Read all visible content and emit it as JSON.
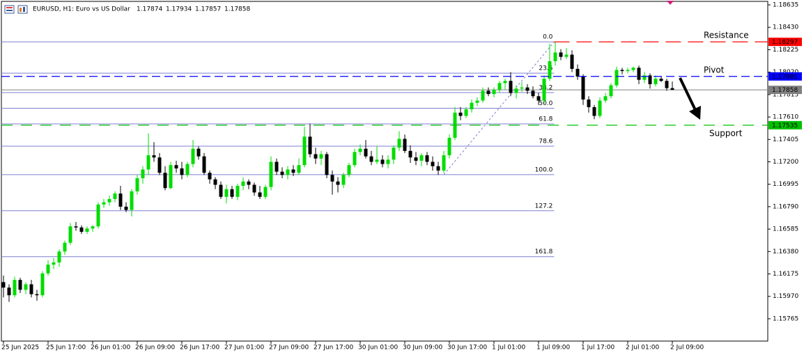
{
  "chart_data": {
    "type": "candlestick",
    "title": "EURUSD, H1: Euro vs US Dollar",
    "categories": [
      "25 Jun 2025",
      null,
      null,
      null,
      null,
      null,
      null,
      null,
      "25 Jun 17:00",
      null,
      null,
      null,
      null,
      null,
      null,
      null,
      "26 Jun 01:00",
      null,
      null,
      null,
      null,
      null,
      null,
      null,
      "26 Jun 09:00",
      null,
      null,
      null,
      null,
      null,
      null,
      null,
      "26 Jun 17:00",
      null,
      null,
      null,
      null,
      null,
      null,
      null,
      "27 Jun 01:00",
      null,
      null,
      null,
      null,
      null,
      null,
      null,
      "27 Jun 09:00",
      null,
      null,
      null,
      null,
      null,
      null,
      null,
      "27 Jun 17:00",
      null,
      null,
      null,
      null,
      null,
      null,
      null,
      "30 Jun 01:00",
      null,
      null,
      null,
      null,
      null,
      null,
      null,
      "30 Jun 09:00",
      null,
      null,
      null,
      null,
      null,
      null,
      null,
      "30 Jun 17:00",
      null,
      null,
      null,
      null,
      null,
      null,
      null,
      "1 Jul 01:00",
      null,
      null,
      null,
      null,
      null,
      null,
      null,
      "1 Jul 09:00",
      null,
      null,
      null,
      null,
      null,
      null,
      null,
      "1 Jul 17:00",
      null,
      null,
      null,
      null,
      null,
      null,
      null,
      "2 Jul 01:00",
      null,
      null,
      null,
      null,
      null,
      null,
      null,
      "2 Jul 09:00"
    ],
    "open": [
      1.161,
      1.1605,
      1.1598,
      1.1612,
      1.1603,
      1.1608,
      1.1599,
      1.1598,
      1.1618,
      1.1626,
      1.1628,
      1.1638,
      1.1646,
      1.1661,
      1.166,
      1.1656,
      1.1659,
      1.1661,
      1.1681,
      1.1683,
      1.1686,
      1.1691,
      1.1679,
      1.1676,
      1.1693,
      1.1705,
      1.1713,
      1.1726,
      1.1724,
      1.171,
      1.1696,
      1.1717,
      1.1714,
      1.1708,
      1.1718,
      1.1732,
      1.1725,
      1.171,
      1.1704,
      1.1699,
      1.1688,
      1.1695,
      1.1688,
      1.1698,
      1.1702,
      1.1699,
      1.1692,
      1.1688,
      1.1697,
      1.172,
      1.1711,
      1.1708,
      1.1713,
      1.171,
      1.1717,
      1.1743,
      1.1727,
      1.1723,
      1.1727,
      1.1708,
      1.1702,
      1.1699,
      1.1708,
      1.1717,
      1.1729,
      1.1732,
      1.1725,
      1.172,
      1.1722,
      1.1718,
      1.1722,
      1.1733,
      1.1741,
      1.173,
      1.1724,
      1.1721,
      1.1726,
      1.172,
      1.1716,
      1.1712,
      1.1726,
      1.1742,
      1.1765,
      1.1762,
      1.1768,
      1.1774,
      1.1776,
      1.1785,
      1.1782,
      1.1786,
      1.1792,
      1.1794,
      1.1783,
      1.1787,
      1.1788,
      1.1785,
      1.178,
      1.1776,
      1.1796,
      1.1812,
      1.182,
      1.1816,
      1.1818,
      1.1805,
      1.1798,
      1.1777,
      1.177,
      1.1762,
      1.1776,
      1.178,
      1.179,
      1.1804,
      1.1803,
      1.1804,
      1.1806,
      1.1795,
      1.1799,
      1.1791,
      1.1796,
      1.1794,
      1.17874
    ],
    "high": [
      1.1616,
      1.1608,
      1.1615,
      1.1614,
      1.161,
      1.1612,
      1.1603,
      1.162,
      1.163,
      1.1632,
      1.164,
      1.1648,
      1.1664,
      1.1665,
      1.1662,
      1.1661,
      1.1662,
      1.1683,
      1.1686,
      1.1689,
      1.1693,
      1.1698,
      1.1683,
      1.1695,
      1.1708,
      1.1716,
      1.1746,
      1.1738,
      1.1728,
      1.1716,
      1.172,
      1.1721,
      1.172,
      1.172,
      1.174,
      1.1734,
      1.1728,
      1.1712,
      1.1706,
      1.1702,
      1.1699,
      1.1698,
      1.17,
      1.1706,
      1.1704,
      1.1701,
      1.1698,
      1.1699,
      1.1725,
      1.1723,
      1.1715,
      1.1716,
      1.1717,
      1.1723,
      1.1752,
      1.1755,
      1.1733,
      1.173,
      1.1729,
      1.1712,
      1.1706,
      1.171,
      1.1719,
      1.1732,
      1.1736,
      1.174,
      1.173,
      1.1734,
      1.1726,
      1.1726,
      1.1735,
      1.1748,
      1.1745,
      1.1735,
      1.1729,
      1.1728,
      1.1729,
      1.1725,
      1.172,
      1.173,
      1.1745,
      1.177,
      1.177,
      1.177,
      1.1777,
      1.1779,
      1.1788,
      1.1788,
      1.1788,
      1.1794,
      1.1796,
      1.1802,
      1.179,
      1.1793,
      1.1791,
      1.1789,
      1.1783,
      1.1799,
      1.1828,
      1.183,
      1.1823,
      1.1824,
      1.1822,
      1.1809,
      1.18,
      1.178,
      1.1772,
      1.1779,
      1.1783,
      1.1792,
      1.1807,
      1.1806,
      1.1806,
      1.1807,
      1.1808,
      1.1802,
      1.1801,
      1.1799,
      1.1798,
      1.1796,
      1.17934
    ],
    "low": [
      1.1596,
      1.1592,
      1.1596,
      1.16,
      1.1599,
      1.1596,
      1.1593,
      1.1596,
      1.1616,
      1.1622,
      1.1624,
      1.1635,
      1.1644,
      1.1657,
      1.1654,
      1.1654,
      1.1656,
      1.1659,
      1.1678,
      1.168,
      1.1683,
      1.1676,
      1.1674,
      1.167,
      1.169,
      1.17,
      1.1708,
      1.172,
      1.1708,
      1.1694,
      1.1695,
      1.171,
      1.1704,
      1.1706,
      1.1715,
      1.1722,
      1.1708,
      1.17,
      1.1695,
      1.1686,
      1.1682,
      1.1686,
      1.1685,
      1.1694,
      1.1695,
      1.1689,
      1.1686,
      1.1686,
      1.1694,
      1.1708,
      1.1705,
      1.1704,
      1.1707,
      1.1708,
      1.1715,
      1.1724,
      1.1718,
      1.1717,
      1.1705,
      1.169,
      1.1692,
      1.1696,
      1.1706,
      1.1715,
      1.1726,
      1.1723,
      1.1717,
      1.1718,
      1.1715,
      1.1714,
      1.1718,
      1.173,
      1.1728,
      1.1719,
      1.1717,
      1.1716,
      1.1717,
      1.1712,
      1.1708,
      1.171,
      1.1723,
      1.174,
      1.1758,
      1.176,
      1.1765,
      1.1771,
      1.1774,
      1.178,
      1.1779,
      1.1783,
      1.1786,
      1.178,
      1.1778,
      1.1784,
      1.1782,
      1.1778,
      1.1772,
      1.1773,
      1.1794,
      1.1808,
      1.1813,
      1.1814,
      1.1802,
      1.1795,
      1.1772,
      1.1765,
      1.1759,
      1.176,
      1.1774,
      1.1778,
      1.1788,
      1.18,
      1.1801,
      1.1802,
      1.1791,
      1.1792,
      1.1787,
      1.1789,
      1.1793,
      1.1785,
      1.17857
    ],
    "close": [
      1.1605,
      1.1598,
      1.1612,
      1.1603,
      1.1608,
      1.1599,
      1.1598,
      1.1618,
      1.1626,
      1.1628,
      1.1638,
      1.1646,
      1.1661,
      1.166,
      1.1656,
      1.1659,
      1.1661,
      1.1681,
      1.1683,
      1.1686,
      1.1691,
      1.1679,
      1.1676,
      1.1693,
      1.1705,
      1.1713,
      1.1726,
      1.1724,
      1.171,
      1.1696,
      1.1717,
      1.1714,
      1.1708,
      1.1718,
      1.1732,
      1.1725,
      1.171,
      1.1704,
      1.1699,
      1.1688,
      1.1695,
      1.1688,
      1.1698,
      1.1702,
      1.1699,
      1.1692,
      1.1688,
      1.1697,
      1.172,
      1.1711,
      1.1708,
      1.1713,
      1.171,
      1.1717,
      1.1743,
      1.1727,
      1.1723,
      1.1727,
      1.1708,
      1.1702,
      1.1699,
      1.1708,
      1.1717,
      1.1729,
      1.1732,
      1.1725,
      1.172,
      1.1722,
      1.1718,
      1.1722,
      1.1733,
      1.1741,
      1.173,
      1.1724,
      1.1721,
      1.1726,
      1.172,
      1.1716,
      1.1712,
      1.1726,
      1.1742,
      1.1765,
      1.1762,
      1.1768,
      1.1774,
      1.1776,
      1.1785,
      1.1782,
      1.1786,
      1.1792,
      1.1794,
      1.1783,
      1.1787,
      1.1788,
      1.1785,
      1.178,
      1.1776,
      1.1796,
      1.1812,
      1.182,
      1.1816,
      1.1818,
      1.1805,
      1.1798,
      1.1777,
      1.177,
      1.1762,
      1.1776,
      1.178,
      1.179,
      1.1804,
      1.1803,
      1.1804,
      1.1806,
      1.1795,
      1.1799,
      1.1791,
      1.1796,
      1.1794,
      1.17874,
      1.17858
    ],
    "up_color": "#00dd00",
    "down_color": "#000000",
    "current_color": "#808080",
    "ylim": [
      1.15561,
      1.18667
    ],
    "yticks": [
      1.18635,
      {
        "value": 1.1843,
        "label": "1.18430"
      },
      1.18225,
      {
        "value": 1.1802,
        "label": "1.18020"
      },
      1.17815,
      {
        "value": 1.1761,
        "label": "1.17610"
      },
      1.17405,
      {
        "value": 1.172,
        "label": "1.17200"
      },
      1.16995,
      {
        "value": 1.1679,
        "label": "1.16790"
      },
      1.16585,
      {
        "value": 1.1638,
        "label": "1.16380"
      },
      1.16175,
      {
        "value": 1.1597,
        "label": "1.15970"
      },
      1.15765
    ],
    "levels": [
      {
        "name": "Resistance",
        "value": 1.18297,
        "color": "#ff0000"
      },
      {
        "name": "Pivot",
        "value": 1.17981,
        "color": "#0000ff"
      },
      {
        "name": "Support",
        "value": 1.17535,
        "color": "#00c000"
      }
    ],
    "fib": {
      "high": 1.18297,
      "low": 1.17083,
      "color": "#7f7fd0",
      "levels": [
        {
          "value": 0,
          "label": "0.0"
        },
        23.6,
        38.2,
        {
          "value": 50,
          "label": "50.0"
        },
        61.8,
        78.6,
        {
          "value": 100,
          "label": "100.0"
        },
        127.2,
        161.8
      ]
    }
  }
}
